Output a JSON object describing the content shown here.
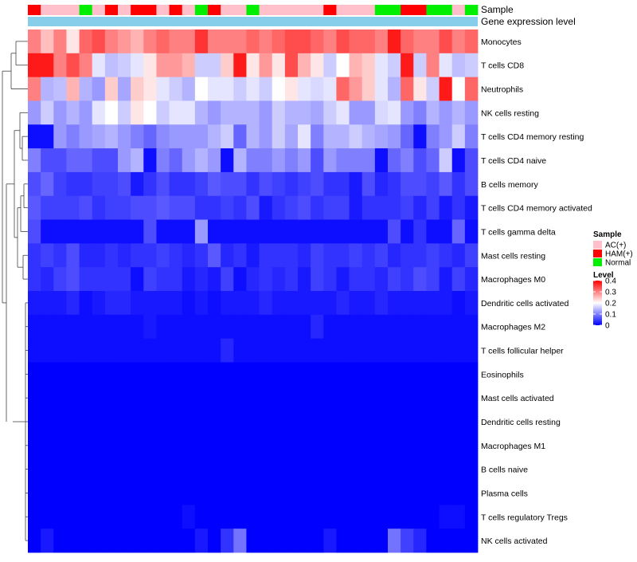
{
  "chart_data": {
    "type": "heatmap",
    "annotation_tracks": [
      {
        "name": "Sample",
        "kind": "categorical"
      },
      {
        "name": "Gene expression level",
        "kind": "continuous"
      }
    ],
    "sample_groups": [
      "HAM",
      "AC",
      "AC",
      "AC",
      "Normal",
      "AC",
      "HAM",
      "AC",
      "HAM",
      "HAM",
      "AC",
      "HAM",
      "AC",
      "Normal",
      "HAM",
      "AC",
      "AC",
      "Normal",
      "AC",
      "AC",
      "AC",
      "AC",
      "AC",
      "HAM",
      "AC",
      "AC",
      "AC",
      "Normal",
      "Normal",
      "HAM",
      "HAM",
      "Normal",
      "Normal",
      "AC",
      "Normal"
    ],
    "rows": [
      "Monocytes",
      "T cells CD8",
      "Neutrophils",
      "NK cells resting",
      "T cells CD4 memory resting",
      "T cells CD4 naive",
      "B cells memory",
      "T cells CD4 memory activated",
      "T cells gamma delta",
      "Mast cells resting",
      "Macrophages M0",
      "Dendritic cells activated",
      "Macrophages M2",
      "T cells follicular helper",
      "Eosinophils",
      "Mast cells activated",
      "Dendritic cells resting",
      "Macrophages M1",
      "B cells naive",
      "Plasma cells",
      "T cells regulatory  Tregs",
      "NK cells activated"
    ],
    "values": [
      [
        0.3,
        0.25,
        0.3,
        0.22,
        0.32,
        0.34,
        0.3,
        0.28,
        0.26,
        0.3,
        0.32,
        0.3,
        0.3,
        0.36,
        0.3,
        0.3,
        0.3,
        0.32,
        0.3,
        0.32,
        0.34,
        0.34,
        0.32,
        0.3,
        0.34,
        0.32,
        0.32,
        0.3,
        0.38,
        0.32,
        0.3,
        0.3,
        0.34,
        0.3,
        0.32
      ],
      [
        0.38,
        0.38,
        0.3,
        0.34,
        0.3,
        0.18,
        0.15,
        0.16,
        0.18,
        0.22,
        0.28,
        0.28,
        0.26,
        0.16,
        0.16,
        0.24,
        0.38,
        0.22,
        0.28,
        0.22,
        0.34,
        0.26,
        0.22,
        0.16,
        0.2,
        0.26,
        0.24,
        0.18,
        0.16,
        0.38,
        0.16,
        0.3,
        0.18,
        0.15,
        0.16
      ],
      [
        0.3,
        0.14,
        0.15,
        0.26,
        0.14,
        0.12,
        0.24,
        0.13,
        0.24,
        0.22,
        0.18,
        0.16,
        0.14,
        0.2,
        0.18,
        0.18,
        0.16,
        0.18,
        0.16,
        0.2,
        0.22,
        0.18,
        0.17,
        0.18,
        0.32,
        0.28,
        0.24,
        0.18,
        0.14,
        0.32,
        0.22,
        0.16,
        0.38,
        0.2,
        0.32
      ],
      [
        0.12,
        0.16,
        0.12,
        0.14,
        0.12,
        0.18,
        0.2,
        0.16,
        0.22,
        0.2,
        0.16,
        0.18,
        0.18,
        0.14,
        0.12,
        0.14,
        0.14,
        0.14,
        0.12,
        0.16,
        0.14,
        0.14,
        0.13,
        0.16,
        0.18,
        0.12,
        0.12,
        0.17,
        0.18,
        0.12,
        0.1,
        0.14,
        0.12,
        0.14,
        0.12
      ],
      [
        0.01,
        0.01,
        0.12,
        0.1,
        0.12,
        0.13,
        0.14,
        0.12,
        0.1,
        0.08,
        0.11,
        0.12,
        0.12,
        0.12,
        0.14,
        0.16,
        0.08,
        0.14,
        0.12,
        0.16,
        0.13,
        0.18,
        0.1,
        0.14,
        0.14,
        0.16,
        0.14,
        0.13,
        0.12,
        0.08,
        0.01,
        0.1,
        0.12,
        0.16,
        0.1
      ],
      [
        0.1,
        0.06,
        0.06,
        0.08,
        0.08,
        0.06,
        0.06,
        0.12,
        0.14,
        0.01,
        0.1,
        0.08,
        0.12,
        0.14,
        0.12,
        0.01,
        0.14,
        0.1,
        0.1,
        0.12,
        0.1,
        0.12,
        0.06,
        0.12,
        0.1,
        0.1,
        0.1,
        0.01,
        0.08,
        0.1,
        0.06,
        0.08,
        0.16,
        0.01,
        0.06
      ],
      [
        0.06,
        0.08,
        0.05,
        0.04,
        0.04,
        0.05,
        0.05,
        0.06,
        0.02,
        0.04,
        0.06,
        0.04,
        0.04,
        0.05,
        0.07,
        0.06,
        0.06,
        0.04,
        0.06,
        0.05,
        0.04,
        0.05,
        0.06,
        0.04,
        0.04,
        0.02,
        0.06,
        0.03,
        0.04,
        0.06,
        0.06,
        0.05,
        0.07,
        0.04,
        0.06
      ],
      [
        0.07,
        0.05,
        0.05,
        0.05,
        0.06,
        0.04,
        0.05,
        0.05,
        0.06,
        0.06,
        0.07,
        0.06,
        0.06,
        0.04,
        0.04,
        0.05,
        0.04,
        0.06,
        0.02,
        0.04,
        0.05,
        0.06,
        0.04,
        0.05,
        0.05,
        0.02,
        0.04,
        0.04,
        0.04,
        0.05,
        0.03,
        0.05,
        0.02,
        0.04,
        0.02
      ],
      [
        0.06,
        0.01,
        0.01,
        0.01,
        0.01,
        0.01,
        0.01,
        0.01,
        0.01,
        0.06,
        0.01,
        0.01,
        0.01,
        0.12,
        0.01,
        0.01,
        0.01,
        0.01,
        0.01,
        0.01,
        0.01,
        0.01,
        0.01,
        0.01,
        0.01,
        0.01,
        0.01,
        0.01,
        0.06,
        0.01,
        0.04,
        0.01,
        0.01,
        0.08,
        0.01
      ],
      [
        0.04,
        0.05,
        0.04,
        0.06,
        0.03,
        0.03,
        0.04,
        0.03,
        0.04,
        0.04,
        0.05,
        0.04,
        0.03,
        0.04,
        0.07,
        0.03,
        0.04,
        0.02,
        0.04,
        0.04,
        0.04,
        0.03,
        0.05,
        0.04,
        0.04,
        0.05,
        0.04,
        0.05,
        0.03,
        0.04,
        0.04,
        0.05,
        0.04,
        0.03,
        0.05
      ],
      [
        0.04,
        0.03,
        0.05,
        0.06,
        0.04,
        0.04,
        0.04,
        0.04,
        0.01,
        0.05,
        0.04,
        0.04,
        0.02,
        0.03,
        0.02,
        0.05,
        0.01,
        0.03,
        0.04,
        0.03,
        0.04,
        0.02,
        0.05,
        0.04,
        0.02,
        0.04,
        0.04,
        0.03,
        0.05,
        0.04,
        0.06,
        0.05,
        0.02,
        0.05,
        0.03
      ],
      [
        0.02,
        0.02,
        0.02,
        0.03,
        0.01,
        0.02,
        0.03,
        0.03,
        0.02,
        0.02,
        0.02,
        0.02,
        0.01,
        0.02,
        0.01,
        0.02,
        0.02,
        0.02,
        0.03,
        0.02,
        0.02,
        0.02,
        0.02,
        0.02,
        0.03,
        0.02,
        0.02,
        0.03,
        0.02,
        0.02,
        0.02,
        0.02,
        0.02,
        0.01,
        0.02
      ],
      [
        0.01,
        0.01,
        0.01,
        0.01,
        0.01,
        0.01,
        0.01,
        0.01,
        0.01,
        0.02,
        0.01,
        0.01,
        0.01,
        0.01,
        0.01,
        0.01,
        0.01,
        0.01,
        0.01,
        0.01,
        0.01,
        0.01,
        0.03,
        0.01,
        0.01,
        0.01,
        0.01,
        0.01,
        0.01,
        0.01,
        0.01,
        0.01,
        0.01,
        0.01,
        0.01
      ],
      [
        0.01,
        0.01,
        0.01,
        0.01,
        0.01,
        0.01,
        0.01,
        0.01,
        0.01,
        0.01,
        0.01,
        0.01,
        0.01,
        0.01,
        0.01,
        0.03,
        0.01,
        0.01,
        0.01,
        0.01,
        0.01,
        0.01,
        0.01,
        0.01,
        0.01,
        0.01,
        0.01,
        0.01,
        0.01,
        0.01,
        0.01,
        0.01,
        0.01,
        0.01,
        0.01
      ],
      [
        0.0,
        0.0,
        0.0,
        0.0,
        0.0,
        0.0,
        0.0,
        0.0,
        0.0,
        0.0,
        0.0,
        0.0,
        0.0,
        0.0,
        0.0,
        0.0,
        0.0,
        0.0,
        0.0,
        0.0,
        0.0,
        0.0,
        0.0,
        0.0,
        0.0,
        0.0,
        0.0,
        0.0,
        0.0,
        0.0,
        0.0,
        0.0,
        0.0,
        0.0,
        0.0
      ],
      [
        0.0,
        0.0,
        0.0,
        0.0,
        0.0,
        0.0,
        0.0,
        0.0,
        0.0,
        0.0,
        0.0,
        0.0,
        0.0,
        0.0,
        0.0,
        0.0,
        0.0,
        0.0,
        0.0,
        0.0,
        0.0,
        0.0,
        0.0,
        0.0,
        0.0,
        0.0,
        0.0,
        0.0,
        0.0,
        0.0,
        0.0,
        0.0,
        0.0,
        0.0,
        0.0
      ],
      [
        0.0,
        0.0,
        0.0,
        0.0,
        0.0,
        0.0,
        0.0,
        0.0,
        0.0,
        0.0,
        0.0,
        0.0,
        0.0,
        0.0,
        0.0,
        0.0,
        0.0,
        0.0,
        0.0,
        0.0,
        0.0,
        0.0,
        0.0,
        0.0,
        0.0,
        0.0,
        0.0,
        0.0,
        0.0,
        0.0,
        0.0,
        0.0,
        0.0,
        0.0,
        0.0
      ],
      [
        0.0,
        0.0,
        0.0,
        0.0,
        0.0,
        0.0,
        0.0,
        0.0,
        0.0,
        0.0,
        0.0,
        0.0,
        0.0,
        0.0,
        0.0,
        0.0,
        0.0,
        0.0,
        0.0,
        0.0,
        0.0,
        0.0,
        0.0,
        0.0,
        0.0,
        0.0,
        0.0,
        0.0,
        0.0,
        0.0,
        0.0,
        0.0,
        0.0,
        0.0,
        0.0
      ],
      [
        0.0,
        0.0,
        0.0,
        0.0,
        0.0,
        0.0,
        0.0,
        0.0,
        0.0,
        0.0,
        0.0,
        0.0,
        0.0,
        0.0,
        0.0,
        0.0,
        0.0,
        0.0,
        0.0,
        0.0,
        0.0,
        0.0,
        0.0,
        0.0,
        0.0,
        0.0,
        0.0,
        0.0,
        0.0,
        0.0,
        0.0,
        0.0,
        0.0,
        0.0,
        0.0
      ],
      [
        0.0,
        0.0,
        0.0,
        0.0,
        0.0,
        0.0,
        0.0,
        0.0,
        0.0,
        0.0,
        0.0,
        0.0,
        0.0,
        0.0,
        0.0,
        0.0,
        0.0,
        0.0,
        0.0,
        0.0,
        0.0,
        0.0,
        0.0,
        0.0,
        0.0,
        0.0,
        0.0,
        0.0,
        0.0,
        0.0,
        0.0,
        0.0,
        0.0,
        0.0,
        0.0
      ],
      [
        0.0,
        0.0,
        0.0,
        0.0,
        0.0,
        0.0,
        0.0,
        0.0,
        0.0,
        0.0,
        0.0,
        0.0,
        0.01,
        0.0,
        0.0,
        0.0,
        0.0,
        0.0,
        0.0,
        0.0,
        0.0,
        0.0,
        0.0,
        0.0,
        0.0,
        0.0,
        0.0,
        0.0,
        0.0,
        0.0,
        0.0,
        0.0,
        0.01,
        0.01,
        0.0
      ],
      [
        0.0,
        0.02,
        0.0,
        0.0,
        0.0,
        0.0,
        0.0,
        0.0,
        0.0,
        0.0,
        0.0,
        0.0,
        0.0,
        0.02,
        0.0,
        0.04,
        0.09,
        0.0,
        0.0,
        0.0,
        0.0,
        0.0,
        0.0,
        0.02,
        0.0,
        0.0,
        0.0,
        0.0,
        0.09,
        0.05,
        0.03,
        0.0,
        0.0,
        0.0,
        0.0
      ]
    ],
    "color_scale": {
      "min": 0,
      "max": 0.4,
      "low": "#0000ff",
      "mid": "#ffffff",
      "high": "#ff0000",
      "midpoint": 0.2
    },
    "legend": {
      "sample_title": "Sample",
      "sample_entries": [
        {
          "key": "AC",
          "label": "AC(+)",
          "color": "#ffc0cb"
        },
        {
          "key": "HAM",
          "label": "HAM(+)",
          "color": "#ff0000"
        },
        {
          "key": "Normal",
          "label": "Normal",
          "color": "#00ee00"
        }
      ],
      "level_title": "Level",
      "level_ticks": [
        "0.4",
        "0.3",
        "0.2",
        "0.1",
        "0"
      ],
      "level_tick_values": [
        0.4,
        0.3,
        0.2,
        0.1,
        0
      ]
    },
    "expression_track_color": "#87ceeb"
  }
}
